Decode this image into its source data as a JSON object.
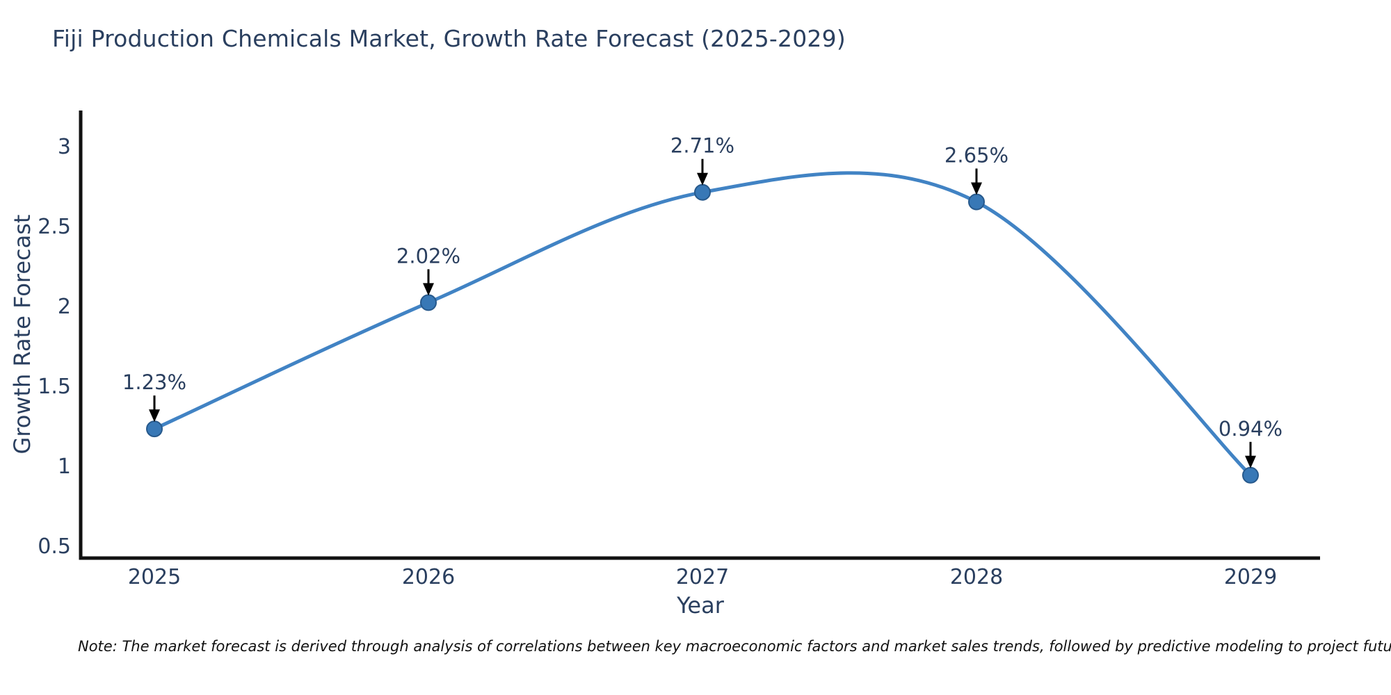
{
  "chart_data": {
    "type": "line",
    "title": "Fiji Production Chemicals Market, Growth Rate Forecast (2025-2029)",
    "xlabel": "Year",
    "ylabel": "Growth Rate Forecast",
    "x": [
      2025,
      2026,
      2027,
      2028,
      2029
    ],
    "values": [
      1.23,
      2.02,
      2.71,
      2.65,
      0.94
    ],
    "point_labels": [
      "1.23%",
      "2.02%",
      "2.71%",
      "2.65%",
      "0.94%"
    ],
    "x_ticks": [
      "2025",
      "2026",
      "2027",
      "2028",
      "2029"
    ],
    "y_ticks": [
      "3",
      "2.5",
      "2",
      "1.5",
      "1",
      "0.5"
    ],
    "y_tick_values": [
      3,
      2.5,
      2,
      1.5,
      1,
      0.5
    ],
    "ylim": [
      0.42,
      3.22
    ],
    "line_shape": "spline",
    "grid": false,
    "legend": "none",
    "colors": {
      "line": "#4183c4",
      "marker_fill": "#3878b6",
      "marker_edge": "#27598c",
      "annotation_arrow": "#000000",
      "axis": "#111111",
      "text": "#2a3f5f",
      "note_text": "#111111"
    }
  },
  "note": {
    "text": "Note: The market forecast is derived through analysis of correlations between key macroeconomic factors and market sales trends, followed by predictive modeling to project future sales"
  }
}
